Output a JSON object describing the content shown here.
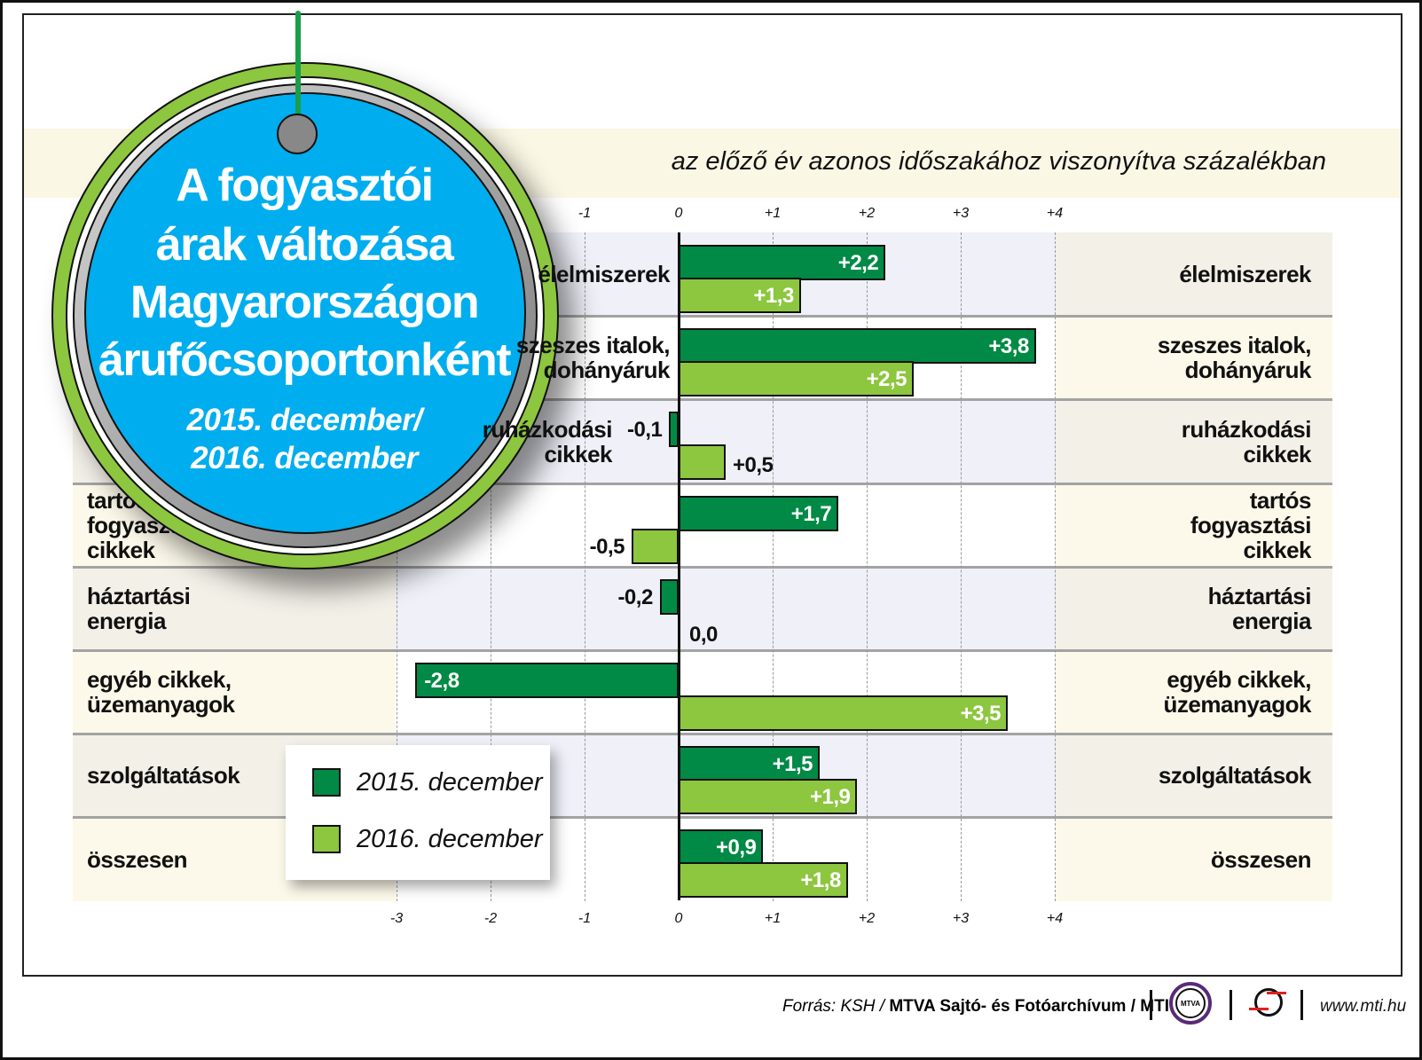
{
  "title": {
    "lines": [
      "A fogyasztói",
      "árak változása",
      "Magyarországon",
      "árufőcsoportonként"
    ],
    "period_lines": [
      "2015. december/",
      "2016. december"
    ]
  },
  "subtitle": "az előző év azonos időszakához viszonyítva százalékban",
  "footer": {
    "source": "Forrás: KSH / ",
    "archive": "MTVA Sajtó- és Fotóarchívum / MTI",
    "mtva_logo": "MTVA",
    "url": "www.mti.hu"
  },
  "colors": {
    "series_2015": "#008a45",
    "series_2016": "#8dc63f",
    "badge": "#00adee"
  },
  "chart_data": {
    "type": "bar",
    "orientation": "horizontal",
    "xlim": [
      -3,
      4
    ],
    "top_ticks": [
      "-3",
      "-2",
      "-1",
      "0",
      "+1",
      "+2",
      "+3",
      "+4"
    ],
    "bottom_ticks": [
      "-3",
      "-2",
      "-1",
      "0",
      "+1",
      "+2",
      "+3",
      "+4"
    ],
    "grid": true,
    "legend_position": "bottom-left",
    "categories": [
      [
        "élelmiszerek"
      ],
      [
        "szeszes italok,",
        "dohányáruk"
      ],
      [
        "ruházkodási",
        "cikkek"
      ],
      [
        "tartós",
        "fogyasztási",
        "cikkek"
      ],
      [
        "háztartási",
        "energia"
      ],
      [
        "egyéb cikkek,",
        "üzemanyagok"
      ],
      [
        "szolgáltatások"
      ],
      [
        "összesen"
      ]
    ],
    "series": [
      {
        "name": "2015. december",
        "values": [
          2.2,
          3.8,
          -0.1,
          1.7,
          -0.2,
          -2.8,
          1.5,
          0.9
        ],
        "labels": [
          "+2,2",
          "+3,8",
          "-0,1",
          "+1,7",
          "-0,2",
          "-2,8",
          "+1,5",
          "+0,9"
        ]
      },
      {
        "name": "2016. december",
        "values": [
          1.3,
          2.5,
          0.5,
          -0.5,
          0.0,
          3.5,
          1.9,
          1.8
        ],
        "labels": [
          "+1,3",
          "+2,5",
          "+0,5",
          "-0,5",
          "0,0",
          "+3,5",
          "+1,9",
          "+1,8"
        ]
      }
    ]
  }
}
